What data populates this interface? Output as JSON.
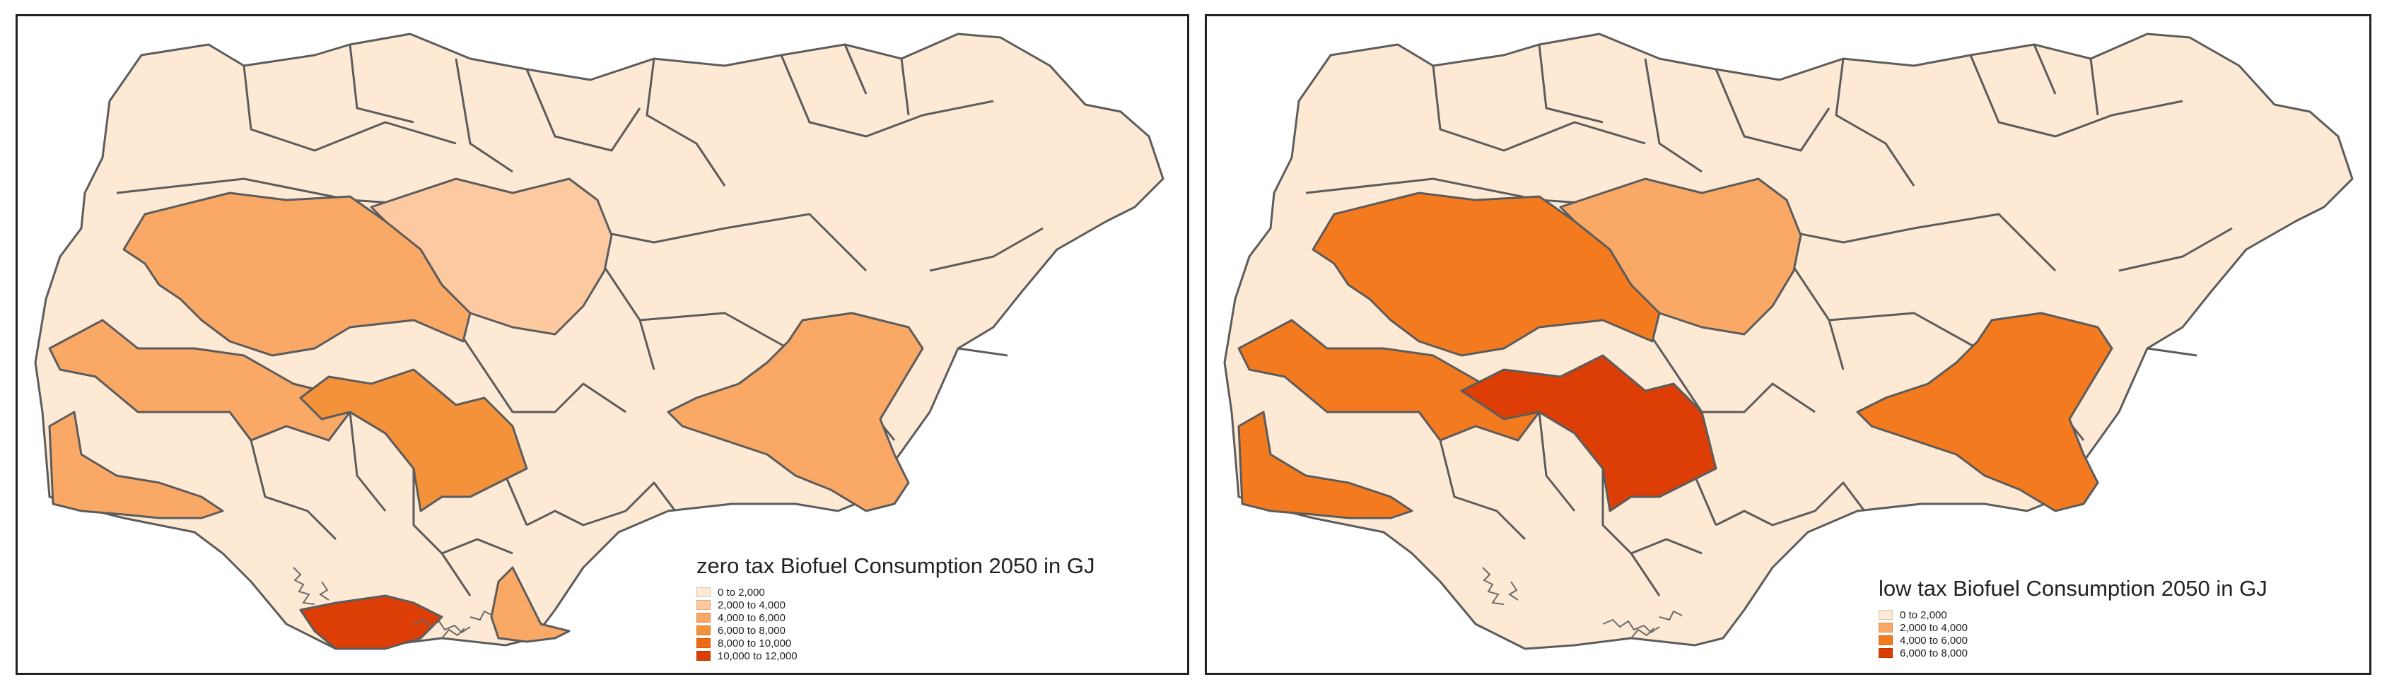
{
  "colors": {
    "border": "#5c5c5c",
    "c1": "#fde9d4",
    "c2": "#fcc9a0",
    "c3": "#f9a866",
    "c4": "#f47a1f",
    "c5": "#ef6a10",
    "c6": "#dc3e06"
  },
  "maps": [
    {
      "legend": {
        "title": "zero tax Biofuel Consumption 2050 in GJ",
        "items": [
          {
            "label": "0 to 2,000",
            "color": "#fde9d4"
          },
          {
            "label": "2,000 to 4,000",
            "color": "#fcc9a0"
          },
          {
            "label": "4,000 to 6,000",
            "color": "#f9a866"
          },
          {
            "label": "6,000 to 8,000",
            "color": "#f4913b"
          },
          {
            "label": "8,000 to 10,000",
            "color": "#ef6a10"
          },
          {
            "label": "10,000 to 12,000",
            "color": "#dc3e06"
          }
        ]
      },
      "regions": {
        "oyo_kwara": "#f9a866",
        "niger": "#f9a866",
        "kaduna": "#fcc9a0",
        "fct_nasarawa": "#f4913b",
        "ogun_lagos": "#f9a866",
        "taraba_adamawa": "#f9a866",
        "rivers_delta": "#dc3e06",
        "cross_river": "#f9a866",
        "benue": "#fde9d4"
      }
    },
    {
      "legend": {
        "title": "low tax Biofuel Consumption 2050 in GJ",
        "items": [
          {
            "label": "0 to 2,000",
            "color": "#fde9d4"
          },
          {
            "label": "2,000 to 4,000",
            "color": "#f9a866"
          },
          {
            "label": "4,000 to 6,000",
            "color": "#f47a1f"
          },
          {
            "label": "6,000 to 8,000",
            "color": "#dc3e06"
          }
        ]
      },
      "regions": {
        "oyo_kwara": "#f47a1f",
        "niger": "#f47a1f",
        "kaduna": "#f9a866",
        "fct_nasarawa": "#dc3e06",
        "ogun_lagos": "#f47a1f",
        "taraba_adamawa": "#f47a1f",
        "rivers_delta": "#fde9d4",
        "cross_river": "#fde9d4",
        "benue": "#fde9d4"
      }
    }
  ]
}
